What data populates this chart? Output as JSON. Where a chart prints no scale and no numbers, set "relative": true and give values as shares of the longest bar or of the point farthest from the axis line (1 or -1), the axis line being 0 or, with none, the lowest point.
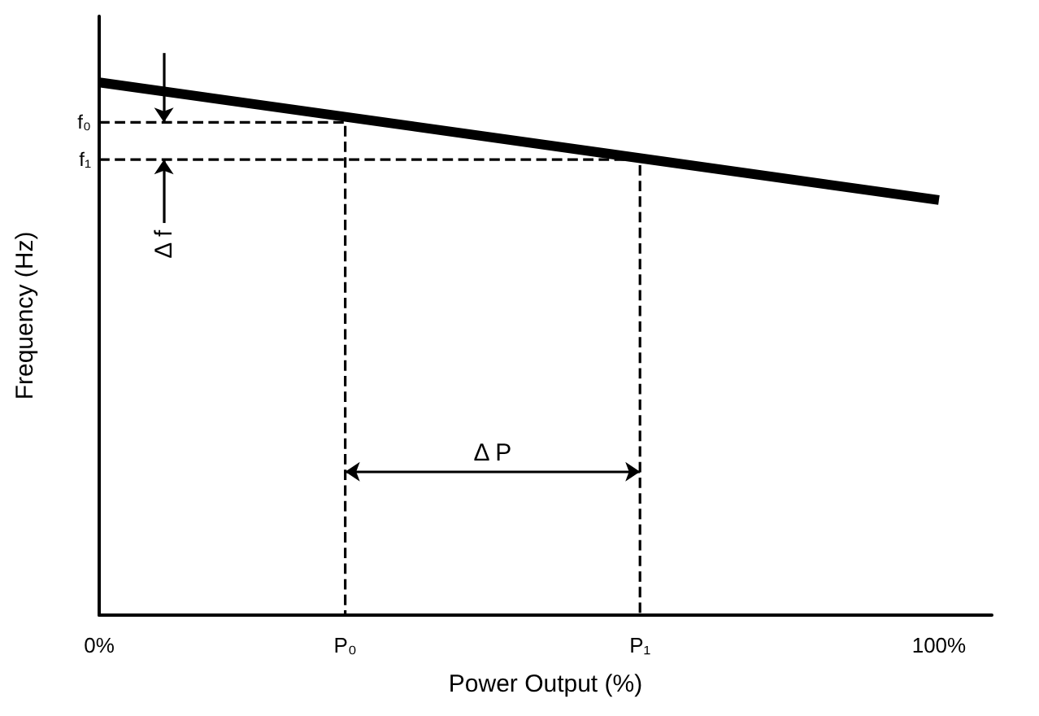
{
  "chart_data": {
    "type": "line",
    "relative": true,
    "xlabel": "Power Output (%)",
    "ylabel": "Frequency (Hz)",
    "xlim": [
      0,
      106.3
    ],
    "xticks": [
      {
        "value": 0,
        "label": "0%"
      },
      {
        "value": 29.3,
        "label": "P₀"
      },
      {
        "value": 64.4,
        "label": "P₁"
      },
      {
        "value": 100,
        "label": "100%"
      }
    ],
    "series": [
      {
        "color": "#000000",
        "x": [
          0,
          100
        ],
        "values": [
          1,
          0.779
        ]
      },
      {
        "color": "#000000",
        "line_style": "dashed",
        "x": [
          0,
          29.3,
          29.3
        ],
        "values": [
          0.925,
          0.925,
          0
        ]
      },
      {
        "color": "#000000",
        "line_style": "dashed",
        "x": [
          0,
          64.4,
          64.4
        ],
        "values": [
          0.855,
          0.855,
          0
        ]
      }
    ],
    "annotations": [
      {
        "text": "f₀",
        "x": 0,
        "y": 0.925
      },
      {
        "text": "f₁",
        "x": 0,
        "y": 0.855
      },
      "Δ f",
      "Δ P"
    ],
    "marker": "none"
  }
}
